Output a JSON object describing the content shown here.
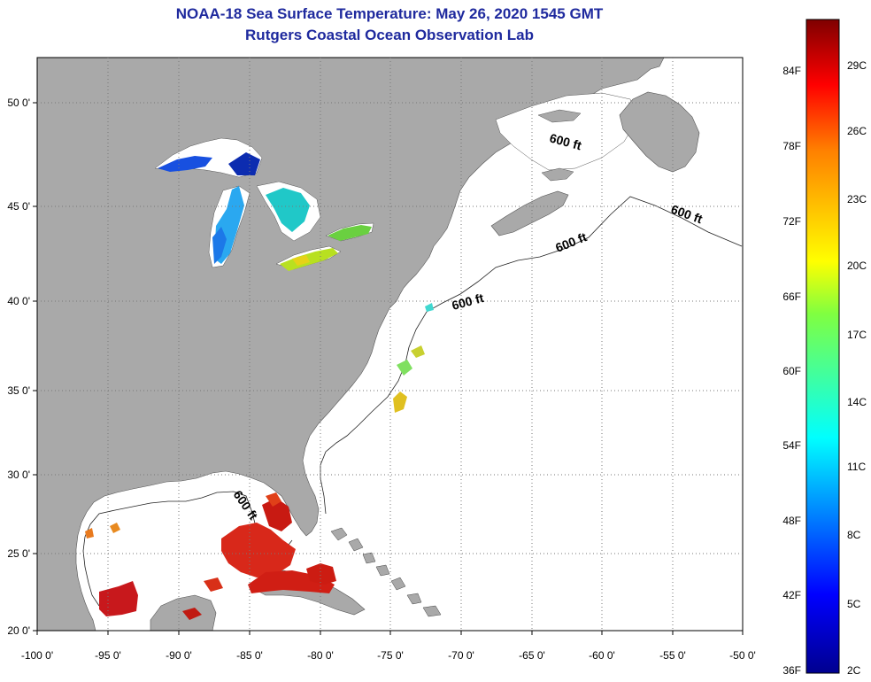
{
  "header": {
    "title": "NOAA-18 Sea Surface Temperature:  May 26, 2020 1545 GMT",
    "subtitle": "Rutgers Coastal Ocean Observation Lab"
  },
  "axes": {
    "lon_labels": [
      "-100 0'",
      "-95 0'",
      "-90 0'",
      "-85 0'",
      "-80 0'",
      "-75 0'",
      "-70 0'",
      "-65 0'",
      "-60 0'",
      "-55 0'",
      "-50 0'"
    ],
    "lat_labels": [
      "50 0'",
      "45 0'",
      "40 0'",
      "35 0'",
      "30 0'",
      "25 0'",
      "20 0'"
    ]
  },
  "depth_contour": {
    "label": "600 ft"
  },
  "colorbar": {
    "fahrenheit": [
      "36F",
      "42F",
      "48F",
      "54F",
      "60F",
      "66F",
      "72F",
      "78F",
      "84F"
    ],
    "celsius": [
      "2C",
      "5C",
      "8C",
      "11C",
      "14C",
      "17C",
      "20C",
      "23C",
      "26C",
      "29C"
    ]
  },
  "colors": {
    "land": "#a9a9a9",
    "ocean": "#ffffff",
    "title": "#1f2a9e",
    "warm": "#d21a10",
    "cold": "#1040d8"
  }
}
